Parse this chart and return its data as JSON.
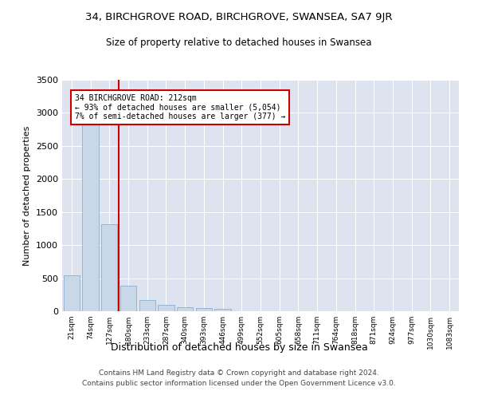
{
  "title": "34, BIRCHGROVE ROAD, BIRCHGROVE, SWANSEA, SA7 9JR",
  "subtitle": "Size of property relative to detached houses in Swansea",
  "xlabel": "Distribution of detached houses by size in Swansea",
  "ylabel": "Number of detached properties",
  "footer_line1": "Contains HM Land Registry data © Crown copyright and database right 2024.",
  "footer_line2": "Contains public sector information licensed under the Open Government Licence v3.0.",
  "categories": [
    "21sqm",
    "74sqm",
    "127sqm",
    "180sqm",
    "233sqm",
    "287sqm",
    "340sqm",
    "393sqm",
    "446sqm",
    "499sqm",
    "552sqm",
    "605sqm",
    "658sqm",
    "711sqm",
    "764sqm",
    "818sqm",
    "871sqm",
    "924sqm",
    "977sqm",
    "1030sqm",
    "1083sqm"
  ],
  "values": [
    540,
    2900,
    1320,
    390,
    165,
    95,
    65,
    50,
    38,
    0,
    0,
    0,
    0,
    0,
    0,
    0,
    0,
    0,
    0,
    0,
    0
  ],
  "bar_color": "#c8d8e8",
  "bar_edge_color": "#8ab0cc",
  "vline_color": "#cc0000",
  "annotation_text": "34 BIRCHGROVE ROAD: 212sqm\n← 93% of detached houses are smaller (5,054)\n7% of semi-detached houses are larger (377) →",
  "annotation_box_color": "#ffffff",
  "annotation_box_edge_color": "#cc0000",
  "bg_color": "#dde3ef",
  "ylim": [
    0,
    3500
  ],
  "yticks": [
    0,
    500,
    1000,
    1500,
    2000,
    2500,
    3000,
    3500
  ],
  "vline_pos": 2.5
}
